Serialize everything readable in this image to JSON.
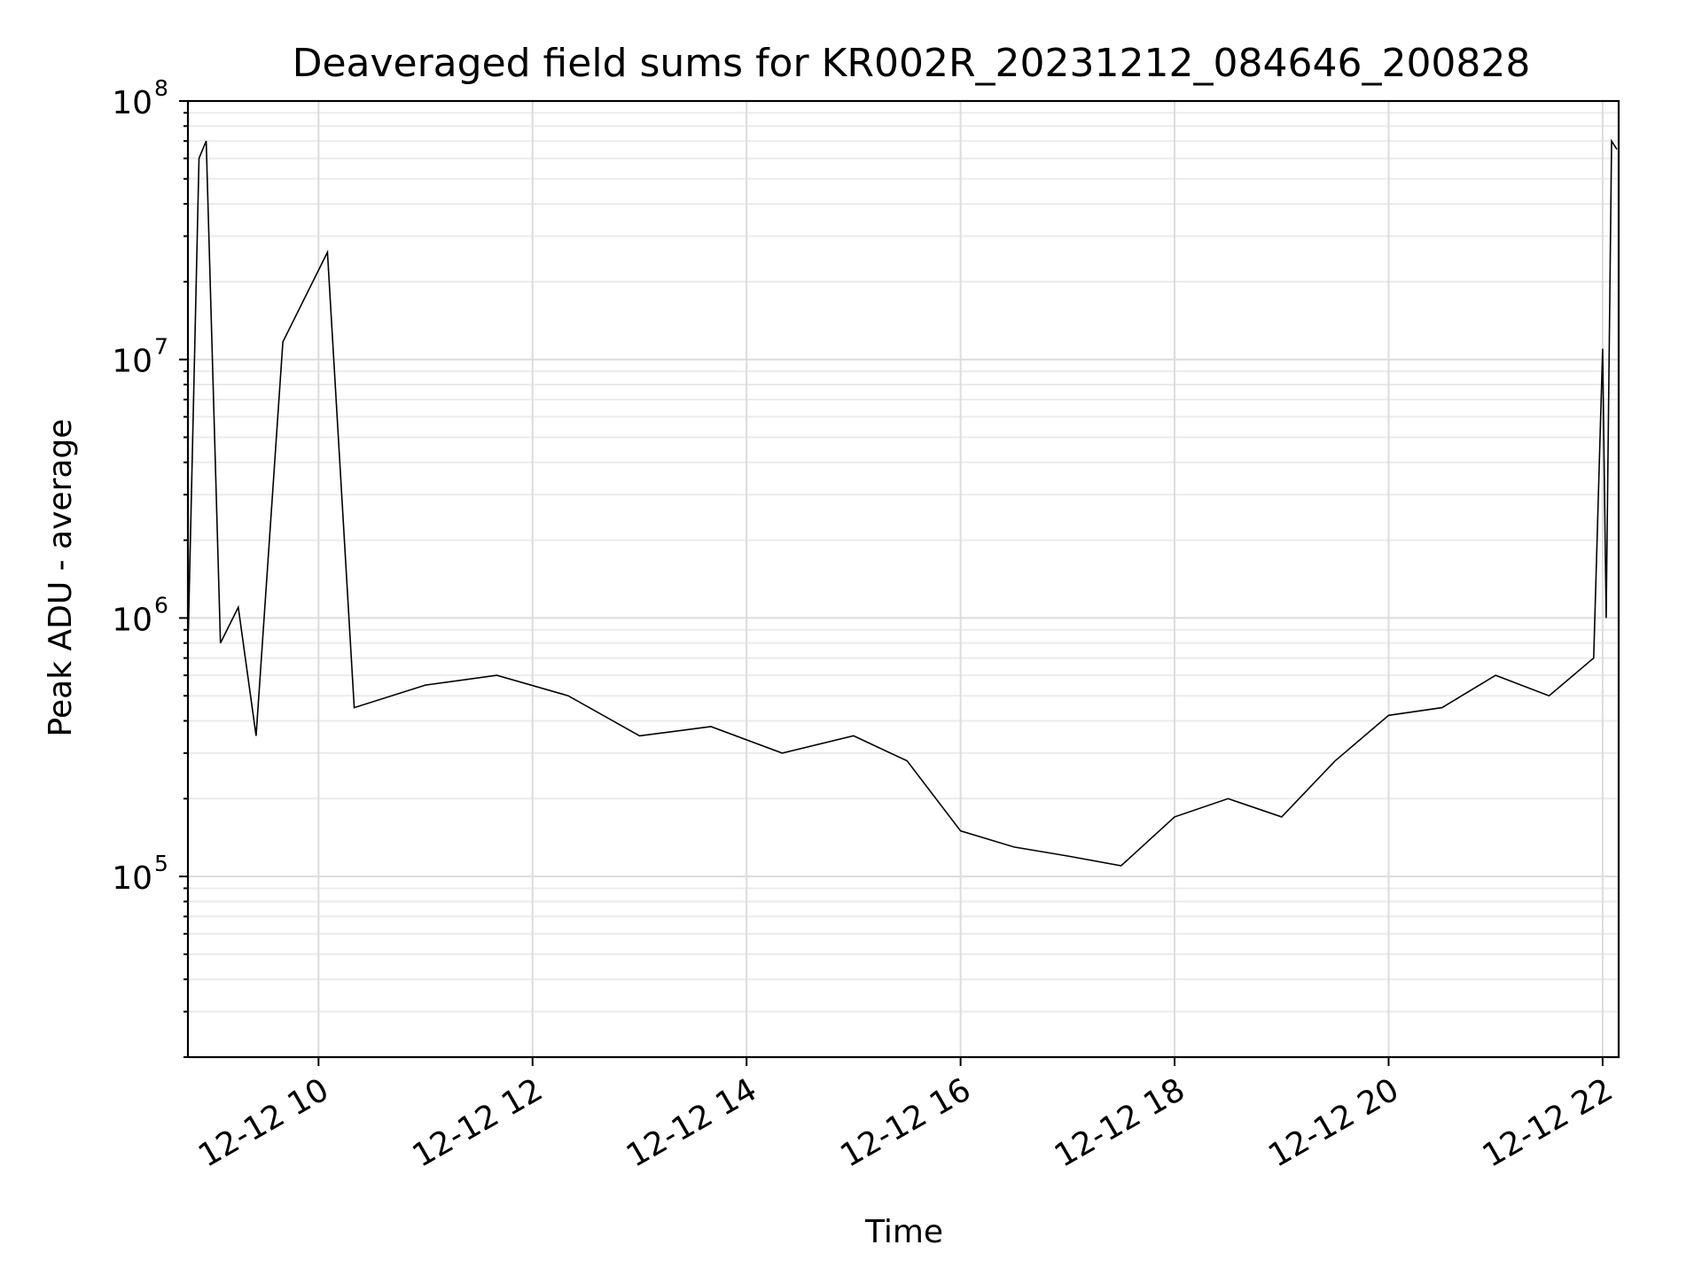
{
  "chart_data": {
    "type": "line",
    "title": "Deaveraged field sums for KR002R_20231212_084646_200828",
    "xlabel": "Time",
    "ylabel": "Peak ADU - average",
    "xlim": [
      "2023-12-12 08:46:46",
      "2023-12-12 22:09:00"
    ],
    "ylim": [
      20000,
      100000000
    ],
    "yscale": "log",
    "grid": true,
    "line_color": "#000000",
    "x_ticks": [
      {
        "value": "2023-12-12 10:00",
        "label": "12-12 10"
      },
      {
        "value": "2023-12-12 12:00",
        "label": "12-12 12"
      },
      {
        "value": "2023-12-12 14:00",
        "label": "12-12 14"
      },
      {
        "value": "2023-12-12 16:00",
        "label": "12-12 16"
      },
      {
        "value": "2023-12-12 18:00",
        "label": "12-12 18"
      },
      {
        "value": "2023-12-12 20:00",
        "label": "12-12 20"
      },
      {
        "value": "2023-12-12 22:00",
        "label": "12-12 22"
      }
    ],
    "y_ticks": [
      {
        "value": 100000,
        "base": "10",
        "exp": "5"
      },
      {
        "value": 1000000,
        "base": "10",
        "exp": "6"
      },
      {
        "value": 10000000,
        "base": "10",
        "exp": "7"
      },
      {
        "value": 100000000,
        "base": "10",
        "exp": "8"
      }
    ],
    "series": [
      {
        "x": [
          "2023-12-12 08:47",
          "2023-12-12 08:53",
          "2023-12-12 08:57",
          "2023-12-12 09:05",
          "2023-12-12 09:15",
          "2023-12-12 09:25",
          "2023-12-12 09:40",
          "2023-12-12 10:05",
          "2023-12-12 10:20",
          "2023-12-12 11:00",
          "2023-12-12 11:40",
          "2023-12-12 12:20",
          "2023-12-12 13:00",
          "2023-12-12 13:40",
          "2023-12-12 14:20",
          "2023-12-12 15:00",
          "2023-12-12 15:30",
          "2023-12-12 16:00",
          "2023-12-12 16:30",
          "2023-12-12 17:00",
          "2023-12-12 17:30",
          "2023-12-12 18:00",
          "2023-12-12 18:30",
          "2023-12-12 19:00",
          "2023-12-12 19:30",
          "2023-12-12 20:00",
          "2023-12-12 20:30",
          "2023-12-12 21:00",
          "2023-12-12 21:30",
          "2023-12-12 21:55",
          "2023-12-12 22:00",
          "2023-12-12 22:02",
          "2023-12-12 22:05",
          "2023-12-12 22:08"
        ],
        "y": [
          900000,
          60000000,
          70000000,
          800000,
          1100000,
          350000,
          11700000,
          26000000,
          450000,
          550000,
          600000,
          500000,
          350000,
          380000,
          300000,
          350000,
          280000,
          150000,
          130000,
          120000,
          110000,
          170000,
          200000,
          170000,
          280000,
          420000,
          450000,
          600000,
          500000,
          700000,
          11000000,
          1000000,
          70000000,
          65000000
        ]
      }
    ]
  }
}
